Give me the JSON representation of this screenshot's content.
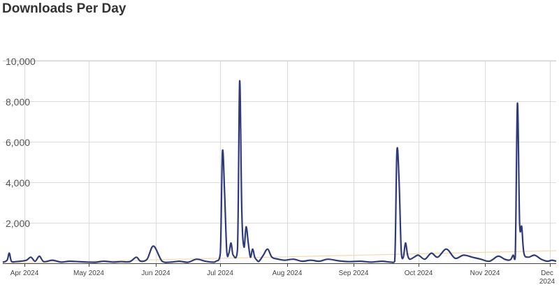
{
  "title": "Downloads Per Day",
  "chart_data": {
    "type": "line",
    "title": "Downloads Per Day",
    "xlabel": "",
    "ylabel": "",
    "ylim": [
      0,
      10000
    ],
    "xlim": [
      "2024-03-22",
      "2024-12-04"
    ],
    "grid": true,
    "legend": "none",
    "y_ticks": [
      {
        "value": 2000,
        "label": "2,000"
      },
      {
        "value": 4000,
        "label": "4,000"
      },
      {
        "value": 6000,
        "label": "6,000"
      },
      {
        "value": 8000,
        "label": "8,000"
      },
      {
        "value": 10000,
        "label": "10,000"
      }
    ],
    "x_ticks": [
      {
        "date": "2024-04-01",
        "label": "Apr 2024"
      },
      {
        "date": "2024-05-01",
        "label": "May 2024"
      },
      {
        "date": "2024-06-01",
        "label": "Jun 2024"
      },
      {
        "date": "2024-07-01",
        "label": "Jul 2024"
      },
      {
        "date": "2024-08-01",
        "label": "Aug 2024"
      },
      {
        "date": "2024-09-01",
        "label": "Sep 2024"
      },
      {
        "date": "2024-10-01",
        "label": "Oct 2024"
      },
      {
        "date": "2024-11-01",
        "label": "Nov 2024"
      },
      {
        "date": "2024-12-01",
        "label": "Dec\n2024"
      }
    ],
    "series": [
      {
        "color": "#2e3a7c",
        "x": [
          "2024-03-22",
          "2024-03-24",
          "2024-03-25",
          "2024-03-26",
          "2024-03-28",
          "2024-03-30",
          "2024-04-02",
          "2024-04-04",
          "2024-04-06",
          "2024-04-08",
          "2024-04-10",
          "2024-04-14",
          "2024-04-18",
          "2024-04-22",
          "2024-04-26",
          "2024-04-30",
          "2024-05-04",
          "2024-05-08",
          "2024-05-12",
          "2024-05-16",
          "2024-05-20",
          "2024-05-23",
          "2024-05-25",
          "2024-05-28",
          "2024-05-31",
          "2024-06-04",
          "2024-06-08",
          "2024-06-12",
          "2024-06-16",
          "2024-06-20",
          "2024-06-24",
          "2024-06-27",
          "2024-06-29",
          "2024-07-01",
          "2024-07-02",
          "2024-07-03",
          "2024-07-04",
          "2024-07-05",
          "2024-07-06",
          "2024-07-07",
          "2024-07-09",
          "2024-07-10",
          "2024-07-11",
          "2024-07-12",
          "2024-07-13",
          "2024-07-14",
          "2024-07-15",
          "2024-07-16",
          "2024-07-17",
          "2024-07-18",
          "2024-07-19",
          "2024-07-21",
          "2024-07-23",
          "2024-07-25",
          "2024-07-28",
          "2024-07-31",
          "2024-08-04",
          "2024-08-08",
          "2024-08-12",
          "2024-08-16",
          "2024-08-20",
          "2024-08-25",
          "2024-08-30",
          "2024-09-04",
          "2024-09-09",
          "2024-09-14",
          "2024-09-18",
          "2024-09-20",
          "2024-09-21",
          "2024-09-22",
          "2024-09-23",
          "2024-09-24",
          "2024-09-25",
          "2024-09-26",
          "2024-09-27",
          "2024-09-29",
          "2024-10-01",
          "2024-10-04",
          "2024-10-07",
          "2024-10-10",
          "2024-10-14",
          "2024-10-18",
          "2024-10-22",
          "2024-10-26",
          "2024-10-30",
          "2024-11-03",
          "2024-11-07",
          "2024-11-10",
          "2024-11-12",
          "2024-11-13",
          "2024-11-14",
          "2024-11-15",
          "2024-11-16",
          "2024-11-17",
          "2024-11-18",
          "2024-11-19",
          "2024-11-21",
          "2024-11-24",
          "2024-11-27",
          "2024-11-30",
          "2024-12-02",
          "2024-12-04"
        ],
        "y": [
          50,
          150,
          500,
          100,
          80,
          100,
          150,
          300,
          100,
          350,
          80,
          150,
          60,
          100,
          80,
          60,
          50,
          100,
          60,
          80,
          80,
          300,
          100,
          200,
          850,
          100,
          60,
          100,
          50,
          200,
          100,
          60,
          100,
          500,
          5500,
          3500,
          600,
          500,
          1000,
          400,
          700,
          9000,
          2500,
          800,
          1800,
          1000,
          300,
          700,
          300,
          150,
          100,
          400,
          700,
          300,
          200,
          150,
          200,
          100,
          150,
          100,
          200,
          120,
          80,
          100,
          60,
          100,
          60,
          100,
          5500,
          4200,
          700,
          300,
          1000,
          400,
          200,
          300,
          400,
          200,
          500,
          300,
          700,
          250,
          400,
          300,
          200,
          100,
          350,
          200,
          150,
          200,
          400,
          300,
          7900,
          2000,
          1800,
          500,
          300,
          400,
          200,
          100,
          150,
          100
        ]
      }
    ]
  }
}
